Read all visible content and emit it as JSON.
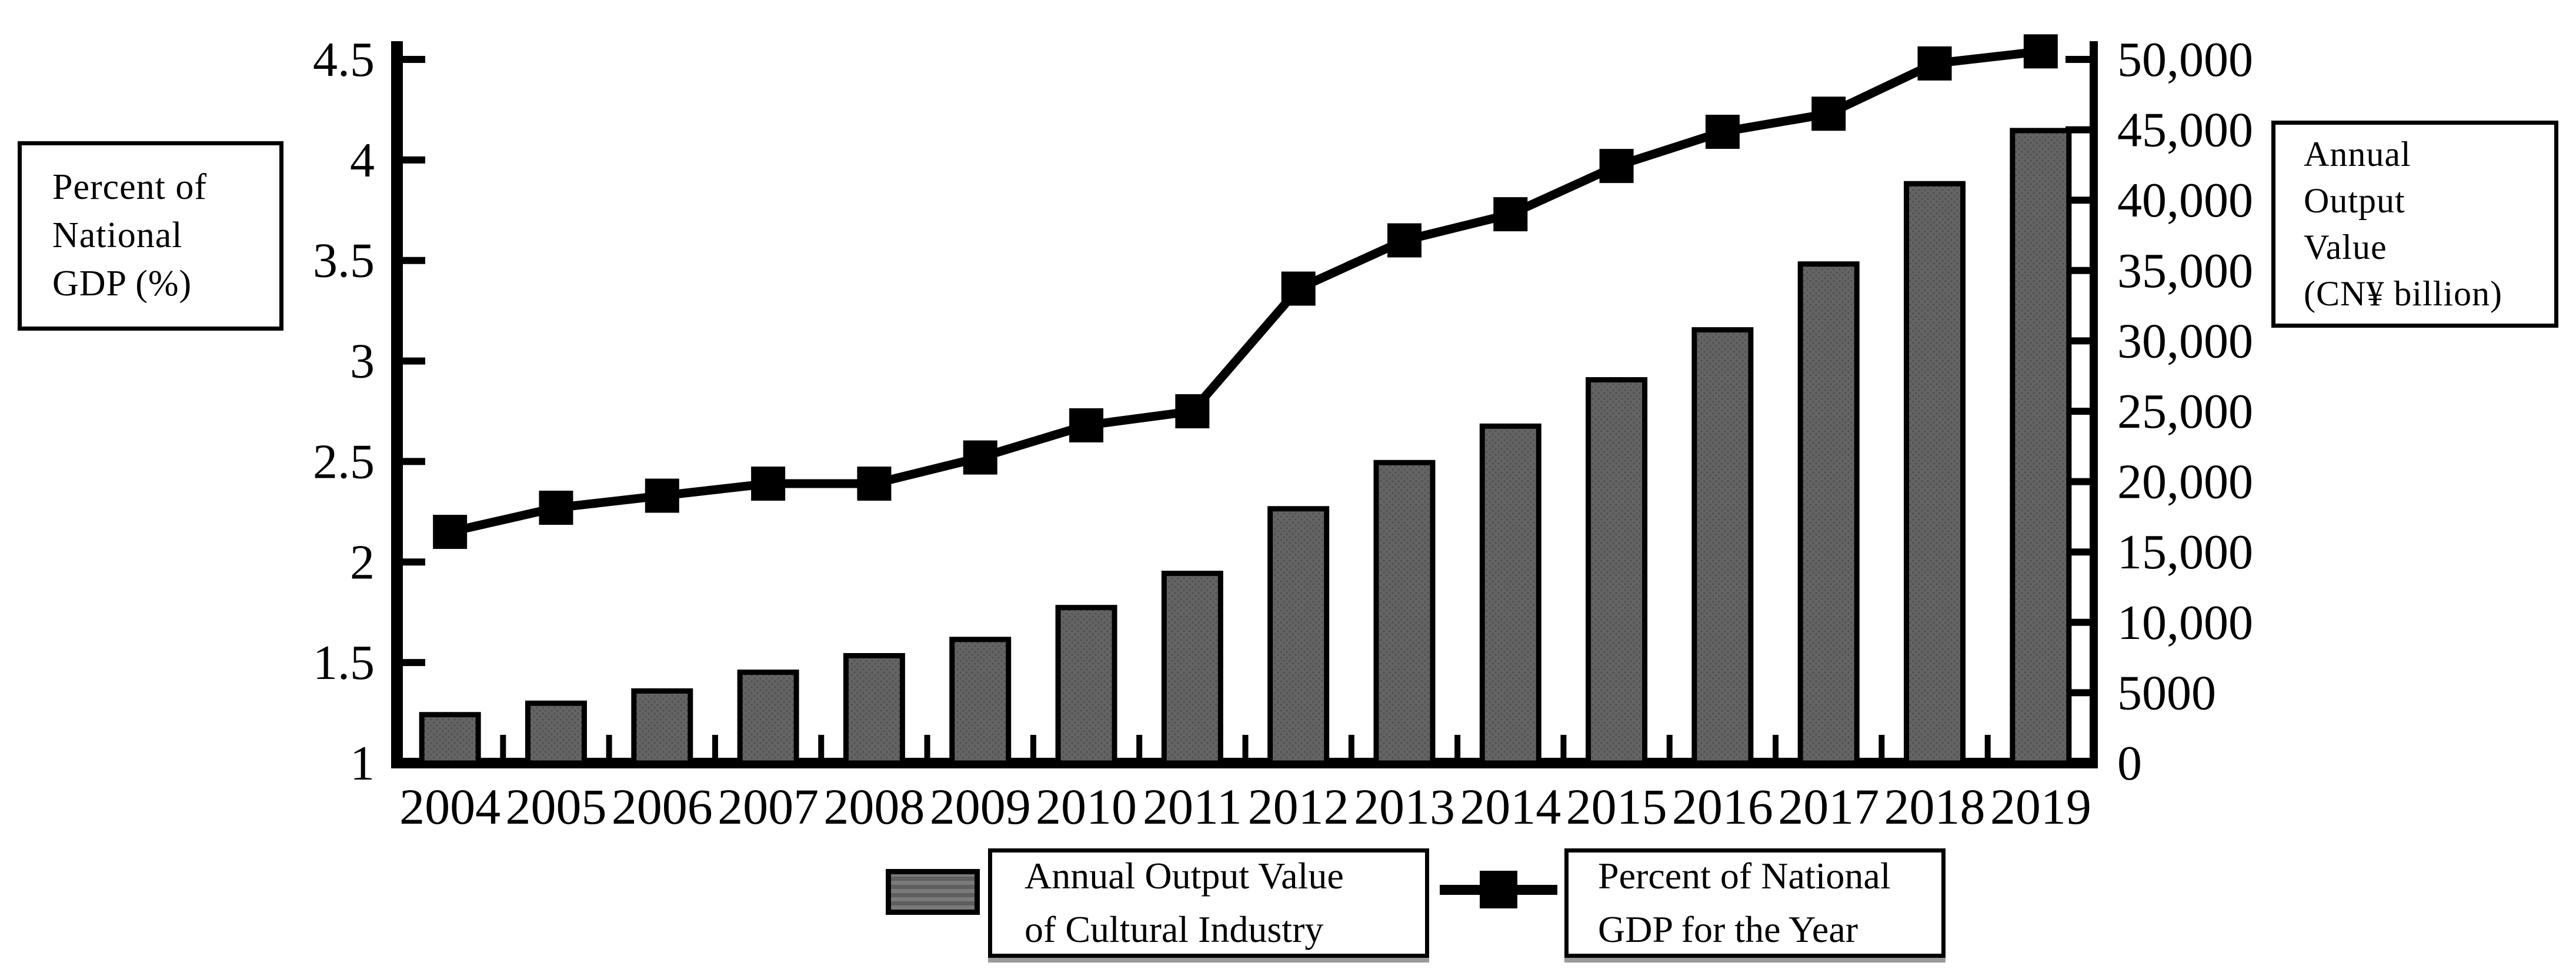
{
  "figure": {
    "left_axis_label": "Percent of\nNational\nGDP (%)",
    "right_axis_label": "Annual\nOutput\nValue\n(CN¥ billion)"
  },
  "legend": {
    "bar_label": "Annual Output Value\nof Cultural Industry",
    "line_label": "Percent of National\nGDP for the Year"
  },
  "chart_data": {
    "type": "bar+line dual-axis",
    "categories": [
      "2004",
      "2005",
      "2006",
      "2007",
      "2008",
      "2009",
      "2010",
      "2011",
      "2012",
      "2013",
      "2014",
      "2015",
      "2016",
      "2017",
      "2018",
      "2019"
    ],
    "series": [
      {
        "name": "Annual Output Value of Cultural Industry",
        "type": "bar",
        "axis": "right",
        "values": [
          3440,
          4253,
          5123,
          6455,
          7630,
          8786,
          11052,
          13479,
          18071,
          21351,
          23940,
          27235,
          30785,
          35462,
          41171,
          44945
        ]
      },
      {
        "name": "Percent of National GDP for the Year",
        "type": "line",
        "axis": "left",
        "values": [
          2.15,
          2.27,
          2.33,
          2.39,
          2.39,
          2.52,
          2.68,
          2.75,
          3.36,
          3.6,
          3.73,
          3.97,
          4.14,
          4.23,
          4.48,
          4.54
        ]
      }
    ],
    "left_axis": {
      "label": "Percent of National GDP (%)",
      "min": 1,
      "max": 4.5,
      "ticks": [
        {
          "v": 4.5,
          "label": "4.5"
        },
        {
          "v": 4,
          "label": "4"
        },
        {
          "v": 3.5,
          "label": "3.5"
        },
        {
          "v": 3,
          "label": "3"
        },
        {
          "v": 2.5,
          "label": "2.5"
        },
        {
          "v": 2,
          "label": "2"
        },
        {
          "v": 1.5,
          "label": "1.5"
        },
        {
          "v": 1,
          "label": "1"
        }
      ]
    },
    "right_axis": {
      "label": "Annual Output Value (CN¥ billion)",
      "min": 0,
      "max": 50000,
      "ticks": [
        {
          "v": 50000,
          "label": "50,000"
        },
        {
          "v": 45000,
          "label": "45,000"
        },
        {
          "v": 40000,
          "label": "40,000"
        },
        {
          "v": 35000,
          "label": "35,000"
        },
        {
          "v": 30000,
          "label": "30,000"
        },
        {
          "v": 25000,
          "label": "25,000"
        },
        {
          "v": 20000,
          "label": "20,000"
        },
        {
          "v": 15000,
          "label": "15,000"
        },
        {
          "v": 10000,
          "label": "10,000"
        },
        {
          "v": 5000,
          "label": "5000"
        },
        {
          "v": 0,
          "label": "0"
        }
      ]
    },
    "colors": {
      "bar_fill": "#646464",
      "bar_dot": "#4e4e4e",
      "bar_border": "#000000",
      "line": "#000000",
      "marker": "#000000"
    },
    "grid": "off",
    "legend_position": "bottom"
  }
}
